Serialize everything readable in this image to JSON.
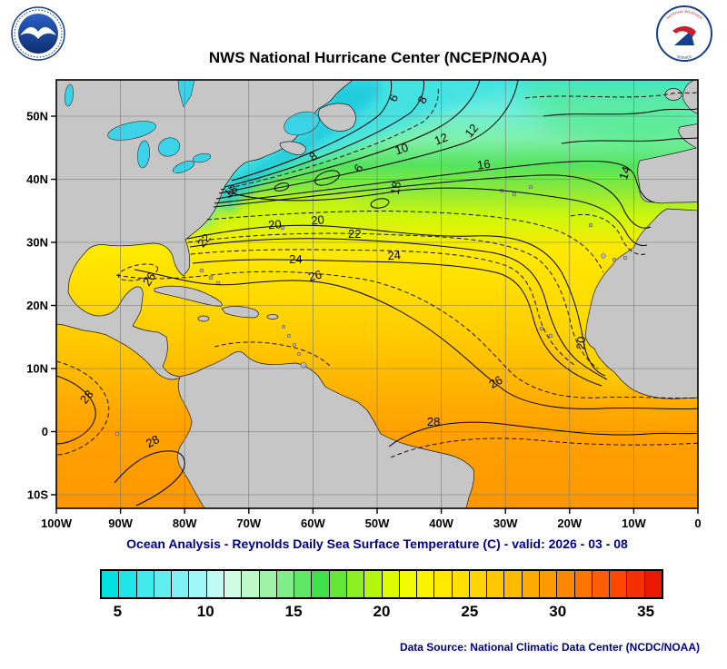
{
  "header": {
    "title": "NWS National Hurricane Center (NCEP/NOAA)",
    "nws_ring_top": "NATIONAL WEATHER",
    "nws_ring_bottom": "SERVICE"
  },
  "footer": {
    "caption": "Ocean Analysis - Reynolds Daily Sea Surface Temperature (C) - valid: 2026 - 03 - 08",
    "source": "Data Source: National Climatic Data Center (NCDC/NOAA)"
  },
  "chart_data": {
    "type": "heatmap",
    "title": "NWS National Hurricane Center (NCEP/NOAA)",
    "variable": "Reynolds Daily Sea Surface Temperature (C)",
    "valid_date": "2026 - 03 - 08",
    "region": "North Atlantic / Tropical Atlantic",
    "lon_ticks": [
      "100W",
      "90W",
      "80W",
      "70W",
      "60W",
      "50W",
      "40W",
      "30W",
      "20W",
      "10W",
      "0"
    ],
    "lon_tick_values": [
      100,
      90,
      80,
      70,
      60,
      50,
      40,
      30,
      20,
      10,
      0
    ],
    "lat_ticks": [
      "50N",
      "40N",
      "30N",
      "20N",
      "10N",
      "0",
      "10S"
    ],
    "lat_tick_values": [
      50,
      40,
      30,
      20,
      10,
      0,
      -10
    ],
    "lat_range": [
      -12.2,
      55.8
    ],
    "lon_range_deg_west": [
      100,
      0
    ],
    "grid": true,
    "contour_interval_c": 2,
    "contour_labels": [
      {
        "v": 6,
        "lon_w": 46.9,
        "lat": 52.6,
        "rot": -62
      },
      {
        "v": 8,
        "lon_w": 42.4,
        "lat": 52.3,
        "rot": -62
      },
      {
        "v": 10,
        "lon_w": 46.0,
        "lat": 44.2,
        "rot": -18
      },
      {
        "v": 12,
        "lon_w": 39.8,
        "lat": 45.8,
        "rot": -22
      },
      {
        "v": 12,
        "lon_w": 34.8,
        "lat": 47.3,
        "rot": -50
      },
      {
        "v": 16,
        "lon_w": 33.3,
        "lat": 41.7,
        "rot": -8
      },
      {
        "v": 14,
        "lon_w": 10.8,
        "lat": 40.8,
        "rot": -72
      },
      {
        "v": 8,
        "lon_w": 59.6,
        "lat": 43.1,
        "rot": -35
      },
      {
        "v": 6,
        "lon_w": 52.4,
        "lat": 41.4,
        "rot": -55
      },
      {
        "v": 18,
        "lon_w": 46.5,
        "lat": 38.5,
        "rot": -80
      },
      {
        "v": 18,
        "lon_w": 72.4,
        "lat": 37.6,
        "rot": -40
      },
      {
        "v": 20,
        "lon_w": 65.9,
        "lat": 32.2,
        "rot": -4
      },
      {
        "v": 20,
        "lon_w": 59.2,
        "lat": 32.9,
        "rot": -6
      },
      {
        "v": 22,
        "lon_w": 76.5,
        "lat": 29.9,
        "rot": -50
      },
      {
        "v": 22,
        "lon_w": 53.5,
        "lat": 30.7,
        "rot": 0
      },
      {
        "v": 24,
        "lon_w": 62.7,
        "lat": 26.7,
        "rot": 0
      },
      {
        "v": 24,
        "lon_w": 47.3,
        "lat": 27.3,
        "rot": -4
      },
      {
        "v": 26,
        "lon_w": 85.0,
        "lat": 23.8,
        "rot": -55
      },
      {
        "v": 26,
        "lon_w": 59.5,
        "lat": 24.1,
        "rot": -15
      },
      {
        "v": 20,
        "lon_w": 17.6,
        "lat": 14.0,
        "rot": -85
      },
      {
        "v": 26,
        "lon_w": 31.2,
        "lat": 7.3,
        "rot": -30
      },
      {
        "v": 28,
        "lon_w": 94.8,
        "lat": 5.1,
        "rot": -50
      },
      {
        "v": 28,
        "lon_w": 84.7,
        "lat": -2.1,
        "rot": -28
      },
      {
        "v": 28,
        "lon_w": 41.2,
        "lat": 0.9,
        "rot": 0
      }
    ],
    "colorbar": {
      "min": 4,
      "max": 36,
      "tick_values": [
        5,
        10,
        15,
        20,
        25,
        30,
        35
      ],
      "colors": [
        "#00E1E1",
        "#1FE6E6",
        "#3FEBEB",
        "#5FEFEF",
        "#7FF3F3",
        "#9FF7F7",
        "#BFFBF3",
        "#CFFDE4",
        "#BFF9C8",
        "#9FF3A8",
        "#7FED88",
        "#5FE768",
        "#3FE048",
        "#63E735",
        "#8BEF22",
        "#B3F710",
        "#DBFD00",
        "#F2FA00",
        "#FAF200",
        "#FFE900",
        "#FFDF00",
        "#FFD400",
        "#FFC800",
        "#FFBA00",
        "#FFAA00",
        "#FF9900",
        "#FF8700",
        "#FF7300",
        "#FF5E00",
        "#FF4700",
        "#F53000",
        "#E81900"
      ]
    },
    "colors": {
      "land": "#c6c6c6",
      "lakes": "#3cd2e8",
      "caption_text": "#00008b",
      "navy_logo": "#15418c",
      "logo_red": "#c8202f"
    }
  }
}
